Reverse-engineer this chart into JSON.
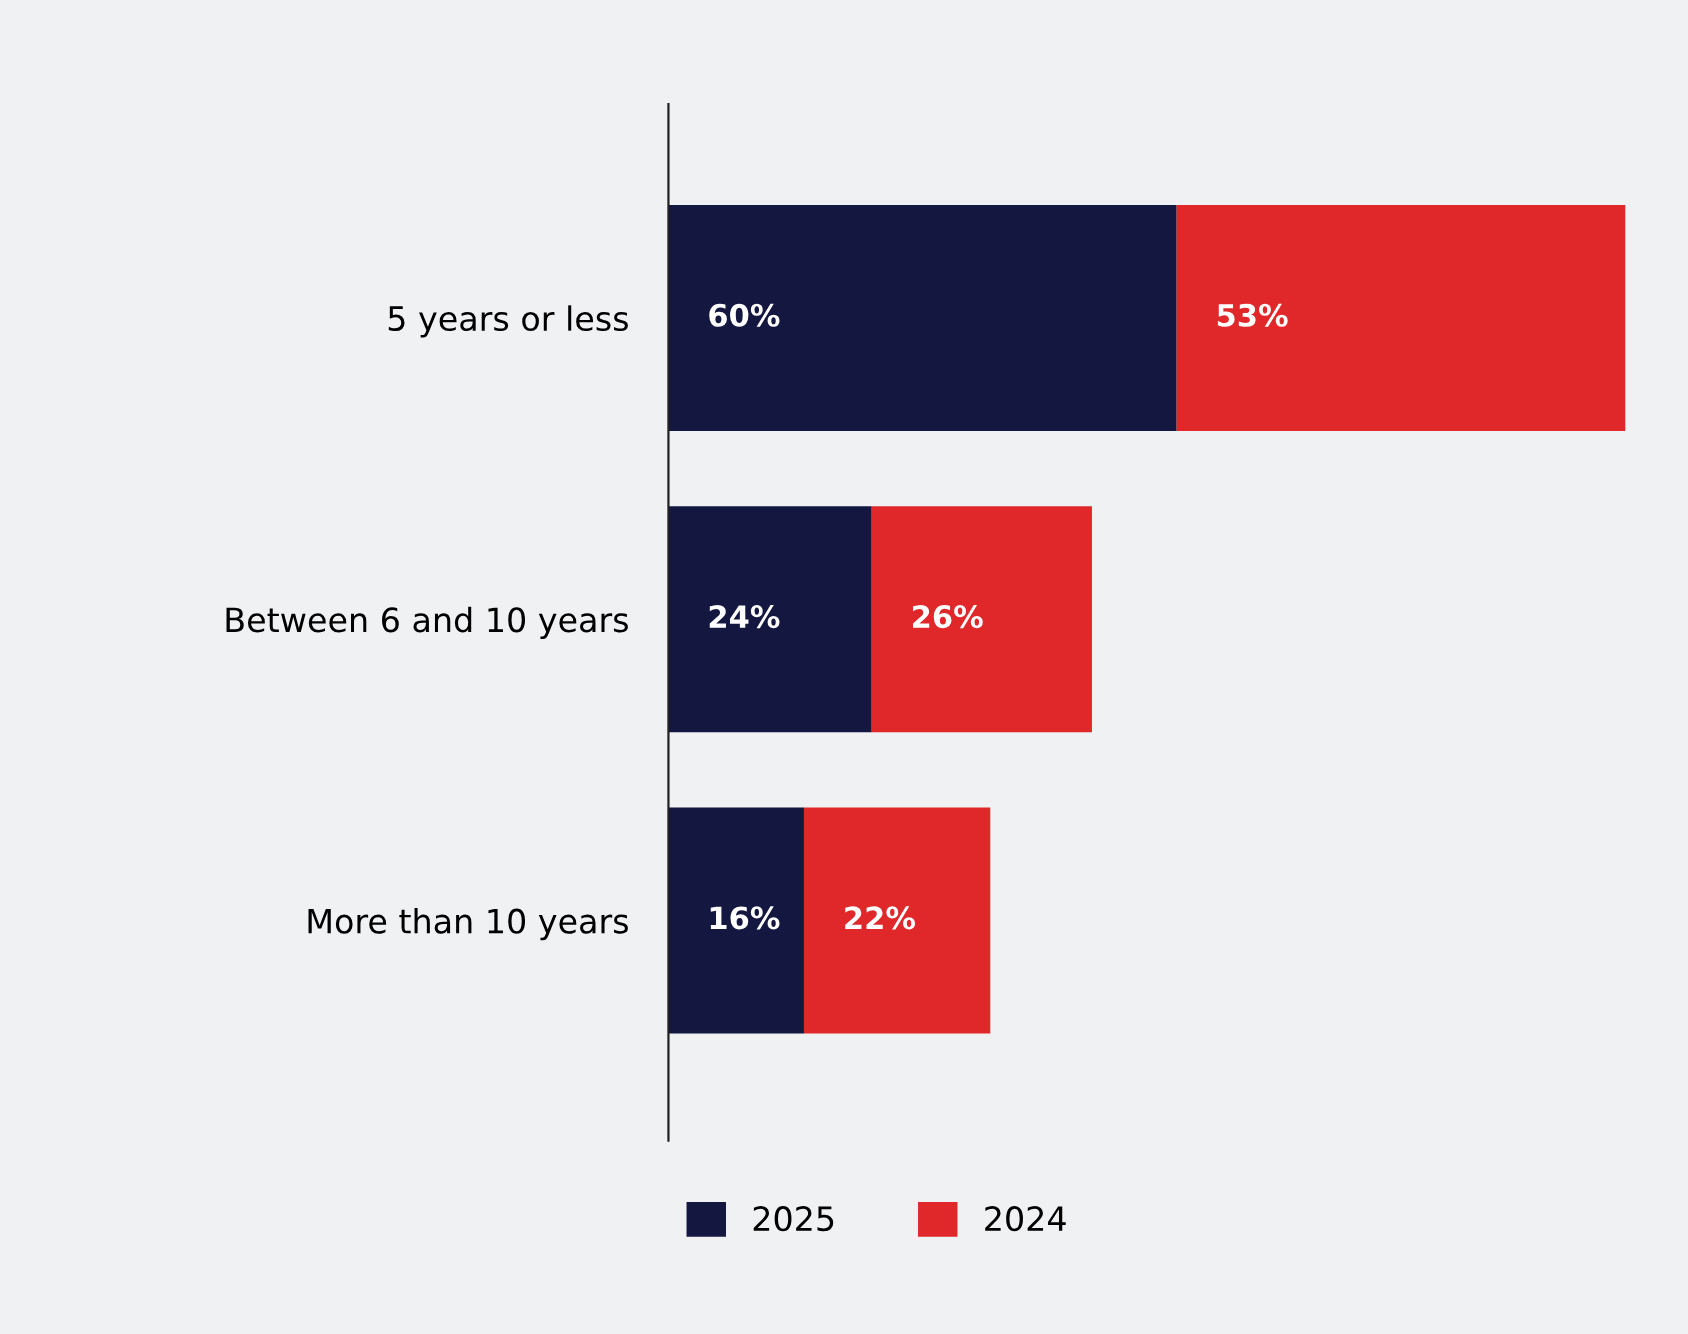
{
  "chart_data": {
    "type": "bar",
    "orientation": "horizontal",
    "stacked": true,
    "categories": [
      "5 years or less",
      "Between 6 and 10 years",
      "More than 10 years"
    ],
    "series": [
      {
        "name": "2025",
        "color": "#14173f",
        "values": [
          60,
          24,
          16
        ],
        "value_labels": [
          "60%",
          "24%",
          "16%"
        ]
      },
      {
        "name": "2024",
        "color": "#e0282b",
        "values": [
          53,
          26,
          22
        ],
        "value_labels": [
          "53%",
          "26%",
          "22%"
        ]
      }
    ],
    "legend": "bottom"
  }
}
